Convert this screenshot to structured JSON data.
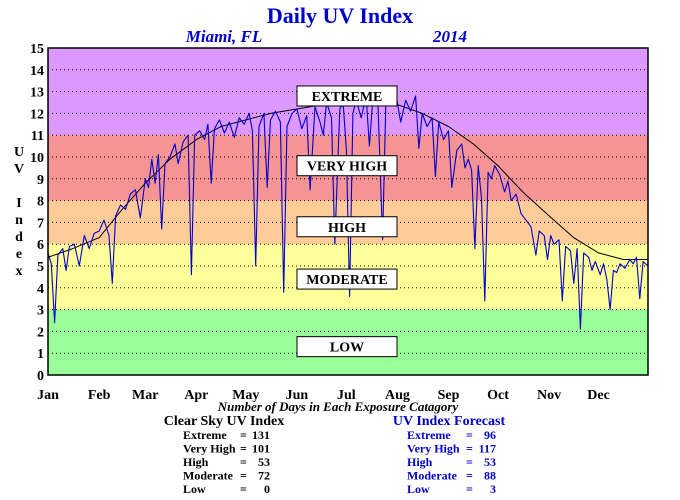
{
  "header": {
    "title": "Daily UV Index",
    "location": "Miami, FL",
    "year": "2014"
  },
  "yaxis_label_letters": [
    "U",
    "V",
    "",
    "I",
    "n",
    "d",
    "e",
    "x"
  ],
  "colors": {
    "purple": "#dd99ff",
    "red": "#f59494",
    "orange": "#ffcc99",
    "yellow": "#ffff99",
    "green": "#99ff99",
    "uv_line": "#0000cc",
    "text_blue": "#0000cc"
  },
  "band_labels": [
    "EXTREME",
    "VERY HIGH",
    "HIGH",
    "MODERATE",
    "LOW"
  ],
  "caption": "Number of Days in Each Exposure Catagory",
  "summary": {
    "clear": {
      "title": "Clear Sky UV Index",
      "rows": [
        {
          "label": "Extreme",
          "value": "131"
        },
        {
          "label": "Very High",
          "value": "101"
        },
        {
          "label": "High",
          "value": "53"
        },
        {
          "label": "Moderate",
          "value": "72"
        },
        {
          "label": "Low",
          "value": "0"
        }
      ]
    },
    "forecast": {
      "title": "UV Index Forecast",
      "rows": [
        {
          "label": "Extreme",
          "value": "96"
        },
        {
          "label": "Very High",
          "value": "117"
        },
        {
          "label": "High",
          "value": "53"
        },
        {
          "label": "Moderate",
          "value": "88"
        },
        {
          "label": "Low",
          "value": "3"
        }
      ]
    }
  },
  "chart_data": {
    "type": "line",
    "title": "Daily UV Index",
    "xlabel": "",
    "ylabel": "UV Index",
    "xlim": [
      1,
      365
    ],
    "ylim": [
      0,
      15
    ],
    "yticks": [
      0,
      1,
      2,
      3,
      4,
      5,
      6,
      7,
      8,
      9,
      10,
      11,
      12,
      13,
      14,
      15
    ],
    "month_labels": [
      "Jan",
      "Feb",
      "Mar",
      "Apr",
      "May",
      "Jun",
      "Jul",
      "Aug",
      "Sep",
      "Oct",
      "Nov",
      "Dec"
    ],
    "month_start_days": [
      1,
      32,
      60,
      91,
      121,
      152,
      182,
      213,
      244,
      274,
      305,
      335
    ],
    "grid": true,
    "bands": [
      {
        "name": "EXTREME",
        "from": 11,
        "to": 15,
        "color": "#dd99ff",
        "label_at": 12.8
      },
      {
        "name": "VERY HIGH",
        "from": 8,
        "to": 11,
        "color": "#f59494",
        "label_at": 9.6
      },
      {
        "name": "HIGH",
        "from": 6,
        "to": 8,
        "color": "#ffcc99",
        "label_at": 6.8
      },
      {
        "name": "MODERATE",
        "from": 3,
        "to": 6,
        "color": "#ffff99",
        "label_at": 4.4
      },
      {
        "name": "LOW",
        "from": 0,
        "to": 3,
        "color": "#99ff99",
        "label_at": 1.3
      }
    ],
    "series": [
      {
        "name": "",
        "color": "#000000",
        "points": [
          [
            1,
            5.4
          ],
          [
            16,
            5.8
          ],
          [
            32,
            6.3
          ],
          [
            46,
            7.6
          ],
          [
            60,
            8.8
          ],
          [
            75,
            9.9
          ],
          [
            91,
            10.8
          ],
          [
            106,
            11.4
          ],
          [
            121,
            11.7
          ],
          [
            136,
            12.0
          ],
          [
            152,
            12.2
          ],
          [
            167,
            12.4
          ],
          [
            182,
            12.5
          ],
          [
            197,
            12.5
          ],
          [
            213,
            12.4
          ],
          [
            228,
            12.0
          ],
          [
            244,
            11.4
          ],
          [
            259,
            10.6
          ],
          [
            274,
            9.6
          ],
          [
            289,
            8.4
          ],
          [
            305,
            7.3
          ],
          [
            320,
            6.3
          ],
          [
            335,
            5.6
          ],
          [
            350,
            5.3
          ],
          [
            365,
            5.3
          ]
        ]
      },
      {
        "name": "",
        "color": "#0000cc",
        "points": [
          [
            1,
            5.6
          ],
          [
            3,
            5.1
          ],
          [
            5,
            2.4
          ],
          [
            7,
            5.5
          ],
          [
            10,
            5.8
          ],
          [
            12,
            4.8
          ],
          [
            14,
            5.9
          ],
          [
            17,
            6.0
          ],
          [
            20,
            5.0
          ],
          [
            23,
            6.4
          ],
          [
            26,
            5.8
          ],
          [
            29,
            6.5
          ],
          [
            32,
            6.6
          ],
          [
            35,
            7.1
          ],
          [
            38,
            6.4
          ],
          [
            40,
            4.2
          ],
          [
            42,
            7.3
          ],
          [
            45,
            7.8
          ],
          [
            48,
            7.6
          ],
          [
            51,
            8.3
          ],
          [
            54,
            8.5
          ],
          [
            57,
            7.2
          ],
          [
            60,
            9.0
          ],
          [
            62,
            8.6
          ],
          [
            64,
            9.9
          ],
          [
            66,
            8.8
          ],
          [
            68,
            10.1
          ],
          [
            70,
            6.7
          ],
          [
            72,
            9.7
          ],
          [
            75,
            10.0
          ],
          [
            78,
            10.6
          ],
          [
            80,
            9.7
          ],
          [
            83,
            10.7
          ],
          [
            86,
            11.0
          ],
          [
            88,
            4.6
          ],
          [
            90,
            11.0
          ],
          [
            93,
            11.2
          ],
          [
            96,
            10.8
          ],
          [
            98,
            11.5
          ],
          [
            100,
            8.8
          ],
          [
            102,
            11.3
          ],
          [
            105,
            11.7
          ],
          [
            108,
            11.1
          ],
          [
            111,
            11.6
          ],
          [
            114,
            10.9
          ],
          [
            117,
            11.8
          ],
          [
            120,
            11.5
          ],
          [
            123,
            12.0
          ],
          [
            125,
            11.2
          ],
          [
            127,
            5.0
          ],
          [
            129,
            11.4
          ],
          [
            132,
            12.0
          ],
          [
            134,
            8.6
          ],
          [
            136,
            11.7
          ],
          [
            139,
            12.1
          ],
          [
            142,
            11.6
          ],
          [
            144,
            3.8
          ],
          [
            146,
            11.4
          ],
          [
            149,
            12.0
          ],
          [
            152,
            12.2
          ],
          [
            155,
            11.3
          ],
          [
            158,
            11.9
          ],
          [
            160,
            8.5
          ],
          [
            163,
            12.3
          ],
          [
            166,
            11.6
          ],
          [
            168,
            11.0
          ],
          [
            170,
            12.5
          ],
          [
            173,
            11.8
          ],
          [
            175,
            6.0
          ],
          [
            178,
            12.2
          ],
          [
            180,
            12.5
          ],
          [
            182,
            10.3
          ],
          [
            184,
            3.6
          ],
          [
            186,
            12.0
          ],
          [
            188,
            12.6
          ],
          [
            191,
            11.8
          ],
          [
            194,
            12.8
          ],
          [
            196,
            10.5
          ],
          [
            198,
            12.6
          ],
          [
            201,
            12.8
          ],
          [
            204,
            6.2
          ],
          [
            206,
            12.6
          ],
          [
            209,
            12.4
          ],
          [
            212,
            12.9
          ],
          [
            215,
            11.6
          ],
          [
            218,
            12.6
          ],
          [
            221,
            12.1
          ],
          [
            224,
            12.8
          ],
          [
            226,
            10.4
          ],
          [
            228,
            12.0
          ],
          [
            231,
            11.4
          ],
          [
            234,
            11.8
          ],
          [
            236,
            9.1
          ],
          [
            238,
            11.6
          ],
          [
            241,
            10.8
          ],
          [
            244,
            11.2
          ],
          [
            246,
            8.6
          ],
          [
            249,
            10.3
          ],
          [
            252,
            10.6
          ],
          [
            254,
            9.5
          ],
          [
            256,
            9.9
          ],
          [
            258,
            9.4
          ],
          [
            260,
            5.8
          ],
          [
            262,
            9.6
          ],
          [
            264,
            8.1
          ],
          [
            266,
            3.4
          ],
          [
            268,
            9.3
          ],
          [
            270,
            9.0
          ],
          [
            272,
            9.6
          ],
          [
            275,
            9.2
          ],
          [
            278,
            8.4
          ],
          [
            280,
            8.9
          ],
          [
            282,
            8.0
          ],
          [
            285,
            8.3
          ],
          [
            288,
            7.4
          ],
          [
            291,
            7.1
          ],
          [
            294,
            6.8
          ],
          [
            297,
            5.5
          ],
          [
            299,
            6.6
          ],
          [
            302,
            6.4
          ],
          [
            304,
            5.3
          ],
          [
            306,
            6.4
          ],
          [
            308,
            6.0
          ],
          [
            311,
            6.2
          ],
          [
            313,
            3.4
          ],
          [
            315,
            5.9
          ],
          [
            318,
            5.7
          ],
          [
            320,
            4.2
          ],
          [
            322,
            5.8
          ],
          [
            324,
            2.1
          ],
          [
            326,
            5.6
          ],
          [
            329,
            5.4
          ],
          [
            331,
            4.8
          ],
          [
            333,
            5.2
          ],
          [
            336,
            4.6
          ],
          [
            338,
            5.1
          ],
          [
            340,
            4.4
          ],
          [
            342,
            3.0
          ],
          [
            344,
            4.8
          ],
          [
            346,
            4.7
          ],
          [
            348,
            5.1
          ],
          [
            351,
            4.9
          ],
          [
            354,
            5.3
          ],
          [
            356,
            5.1
          ],
          [
            358,
            5.4
          ],
          [
            360,
            3.5
          ],
          [
            362,
            5.2
          ],
          [
            365,
            5.0
          ]
        ]
      }
    ]
  }
}
